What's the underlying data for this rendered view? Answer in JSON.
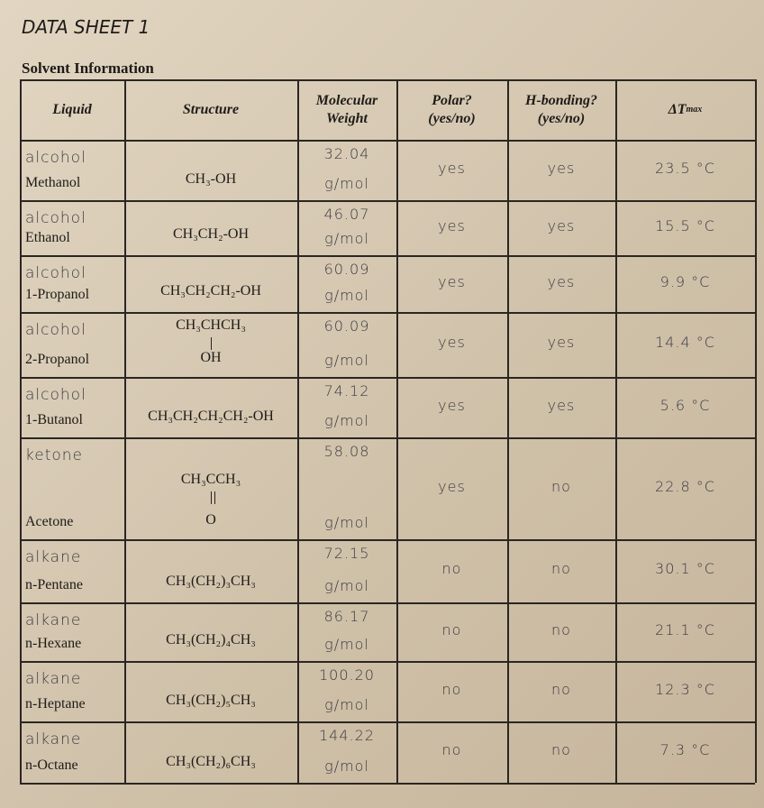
{
  "header": {
    "title": "DATA SHEET 1",
    "section": "Solvent Information"
  },
  "table": {
    "columns": [
      "Liquid",
      "Structure",
      "Molecular\nWeight",
      "Polar?\n(yes/no)",
      "H-bonding?\n(yes/no)",
      {
        "text": "ΔT",
        "sub": "max"
      }
    ],
    "rows": [
      {
        "class": "alcohol",
        "name": "Methanol",
        "structure": "CH₃-OH",
        "mw": "32.04",
        "mw_unit": "g/mol",
        "polar": "yes",
        "hbond": "yes",
        "dt": "23.5 °C"
      },
      {
        "class": "alcohol",
        "name": "Ethanol",
        "structure": "CH₃CH₂-OH",
        "mw": "46.07",
        "mw_unit": "g/mol",
        "polar": "yes",
        "hbond": "yes",
        "dt": "15.5 °C"
      },
      {
        "class": "alcohol",
        "name": "1-Propanol",
        "structure": "CH₃CH₂CH₂-OH",
        "mw": "60.09",
        "mw_unit": "g/mol",
        "polar": "yes",
        "hbond": "yes",
        "dt": "9.9 °C"
      },
      {
        "class": "alcohol",
        "name": "2-Propanol",
        "structure": "CH₃CHCH₃",
        "structure_sub": "OH",
        "mw": "60.09",
        "mw_unit": "g/mol",
        "polar": "yes",
        "hbond": "yes",
        "dt": "14.4 °C"
      },
      {
        "class": "alcohol",
        "name": "1-Butanol",
        "structure": "CH₃CH₂CH₂CH₂-OH",
        "mw": "74.12",
        "mw_unit": "g/mol",
        "polar": "yes",
        "hbond": "yes",
        "dt": "5.6 °C"
      },
      {
        "class": "ketone",
        "name": "Acetone",
        "structure": "CH₃CCH₃",
        "structure_sub": "O",
        "mw": "58.08",
        "mw_unit": "g/mol",
        "polar": "yes",
        "hbond": "no",
        "dt": "22.8 °C"
      },
      {
        "class": "alkane",
        "name": "n-Pentane",
        "structure": "CH₃(CH₂)₃CH₃",
        "mw": "72.15",
        "mw_unit": "g/mol",
        "polar": "no",
        "hbond": "no",
        "dt": "30.1 °C"
      },
      {
        "class": "alkane",
        "name": "n-Hexane",
        "structure": "CH₃(CH₂)₄CH₃",
        "mw": "86.17",
        "mw_unit": "g/mol",
        "polar": "no",
        "hbond": "no",
        "dt": "21.1 °C"
      },
      {
        "class": "alkane",
        "name": "n-Heptane",
        "structure": "CH₃(CH₂)₅CH₃",
        "mw": "100.20",
        "mw_unit": "g/mol",
        "polar": "no",
        "hbond": "no",
        "dt": "12.3 °C"
      },
      {
        "class": "alkane",
        "name": "n-Octane",
        "structure": "CH₃(CH₂)₆CH₃",
        "mw": "144.22",
        "mw_unit": "g/mol",
        "polar": "no",
        "hbond": "no",
        "dt": "7.3 °C"
      }
    ]
  }
}
